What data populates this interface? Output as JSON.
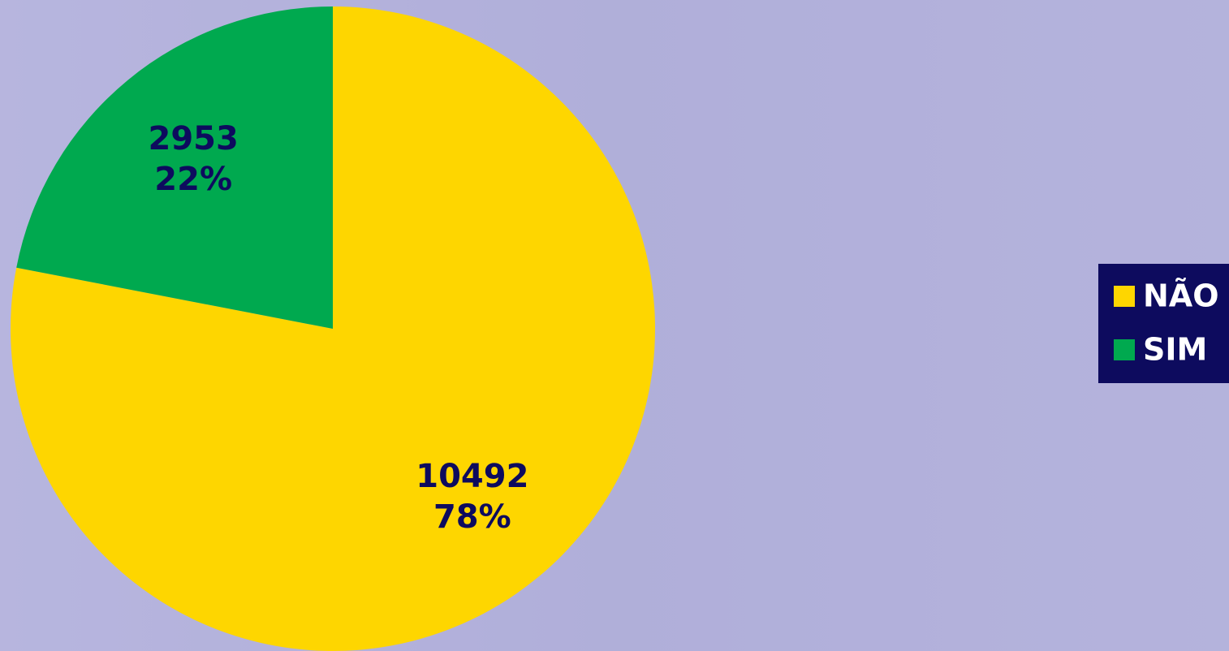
{
  "chart_data": {
    "type": "pie",
    "categories": [
      "NÃO",
      "SIM"
    ],
    "values": [
      10492,
      2953
    ],
    "percent_labels": [
      "78%",
      "22%"
    ],
    "colors": [
      "#fed600",
      "#00a94f"
    ],
    "legend": "right"
  }
}
